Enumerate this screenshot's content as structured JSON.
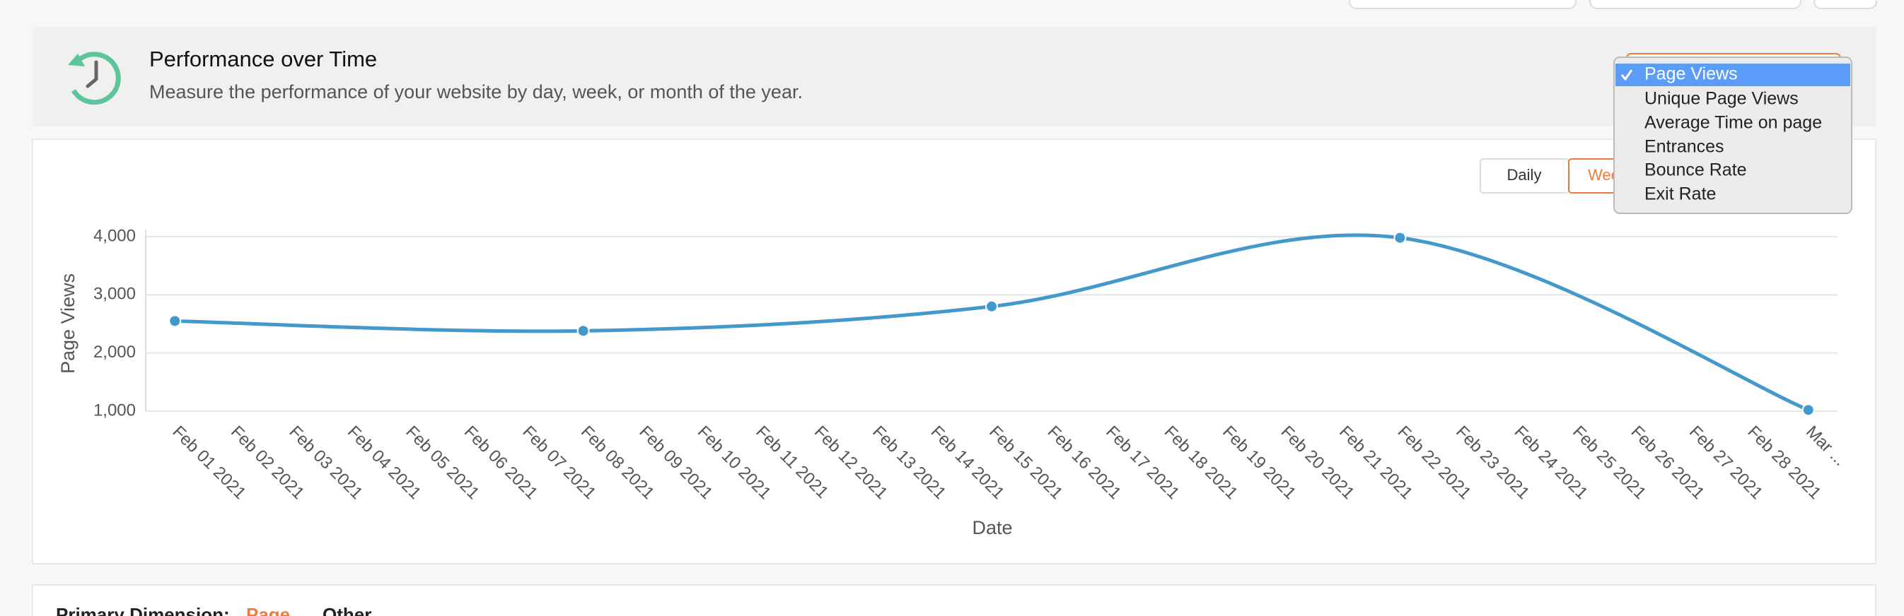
{
  "header": {
    "title": "Performance over Time",
    "subtitle": "Measure the performance of your website by day, week, or month of the year."
  },
  "period_buttons": [
    "Daily",
    "Weekly"
  ],
  "metric_menu": {
    "options": [
      "Page Views",
      "Unique Page Views",
      "Average Time on page",
      "Entrances",
      "Bounce Rate",
      "Exit Rate"
    ],
    "selected": 0
  },
  "footer": {
    "label": "Primary Dimension:",
    "options": [
      "Page",
      "Other"
    ]
  },
  "chart_data": {
    "type": "line",
    "categories": [
      "Feb 01 2021",
      "Feb 02 2021",
      "Feb 03 2021",
      "Feb 04 2021",
      "Feb 05 2021",
      "Feb 06 2021",
      "Feb 07 2021",
      "Feb 08 2021",
      "Feb 09 2021",
      "Feb 10 2021",
      "Feb 11 2021",
      "Feb 12 2021",
      "Feb 13 2021",
      "Feb 14 2021",
      "Feb 15 2021",
      "Feb 16 2021",
      "Feb 17 2021",
      "Feb 18 2021",
      "Feb 19 2021",
      "Feb 20 2021",
      "Feb 21 2021",
      "Feb 22 2021",
      "Feb 23 2021",
      "Feb 24 2021",
      "Feb 25 2021",
      "Feb 26 2021",
      "Feb 27 2021",
      "Feb 28 2021",
      "Mar ..."
    ],
    "series": [
      {
        "name": "Page Views",
        "color": "#4499cc",
        "x": [
          "Feb 01 2021",
          "Feb 08 2021",
          "Feb 15 2021",
          "Feb 22 2021",
          "Mar ..."
        ],
        "values": [
          2550,
          2380,
          2800,
          3980,
          1020
        ]
      }
    ],
    "xlabel": "Date",
    "ylabel": "Page Views",
    "ylim": [
      1000,
      4000
    ],
    "yticks": [
      {
        "value": 1000,
        "label": "1,000"
      },
      {
        "value": 2000,
        "label": "2,000"
      },
      {
        "value": 3000,
        "label": "3,000"
      },
      {
        "value": 4000,
        "label": "4,000"
      }
    ],
    "grid": true
  }
}
